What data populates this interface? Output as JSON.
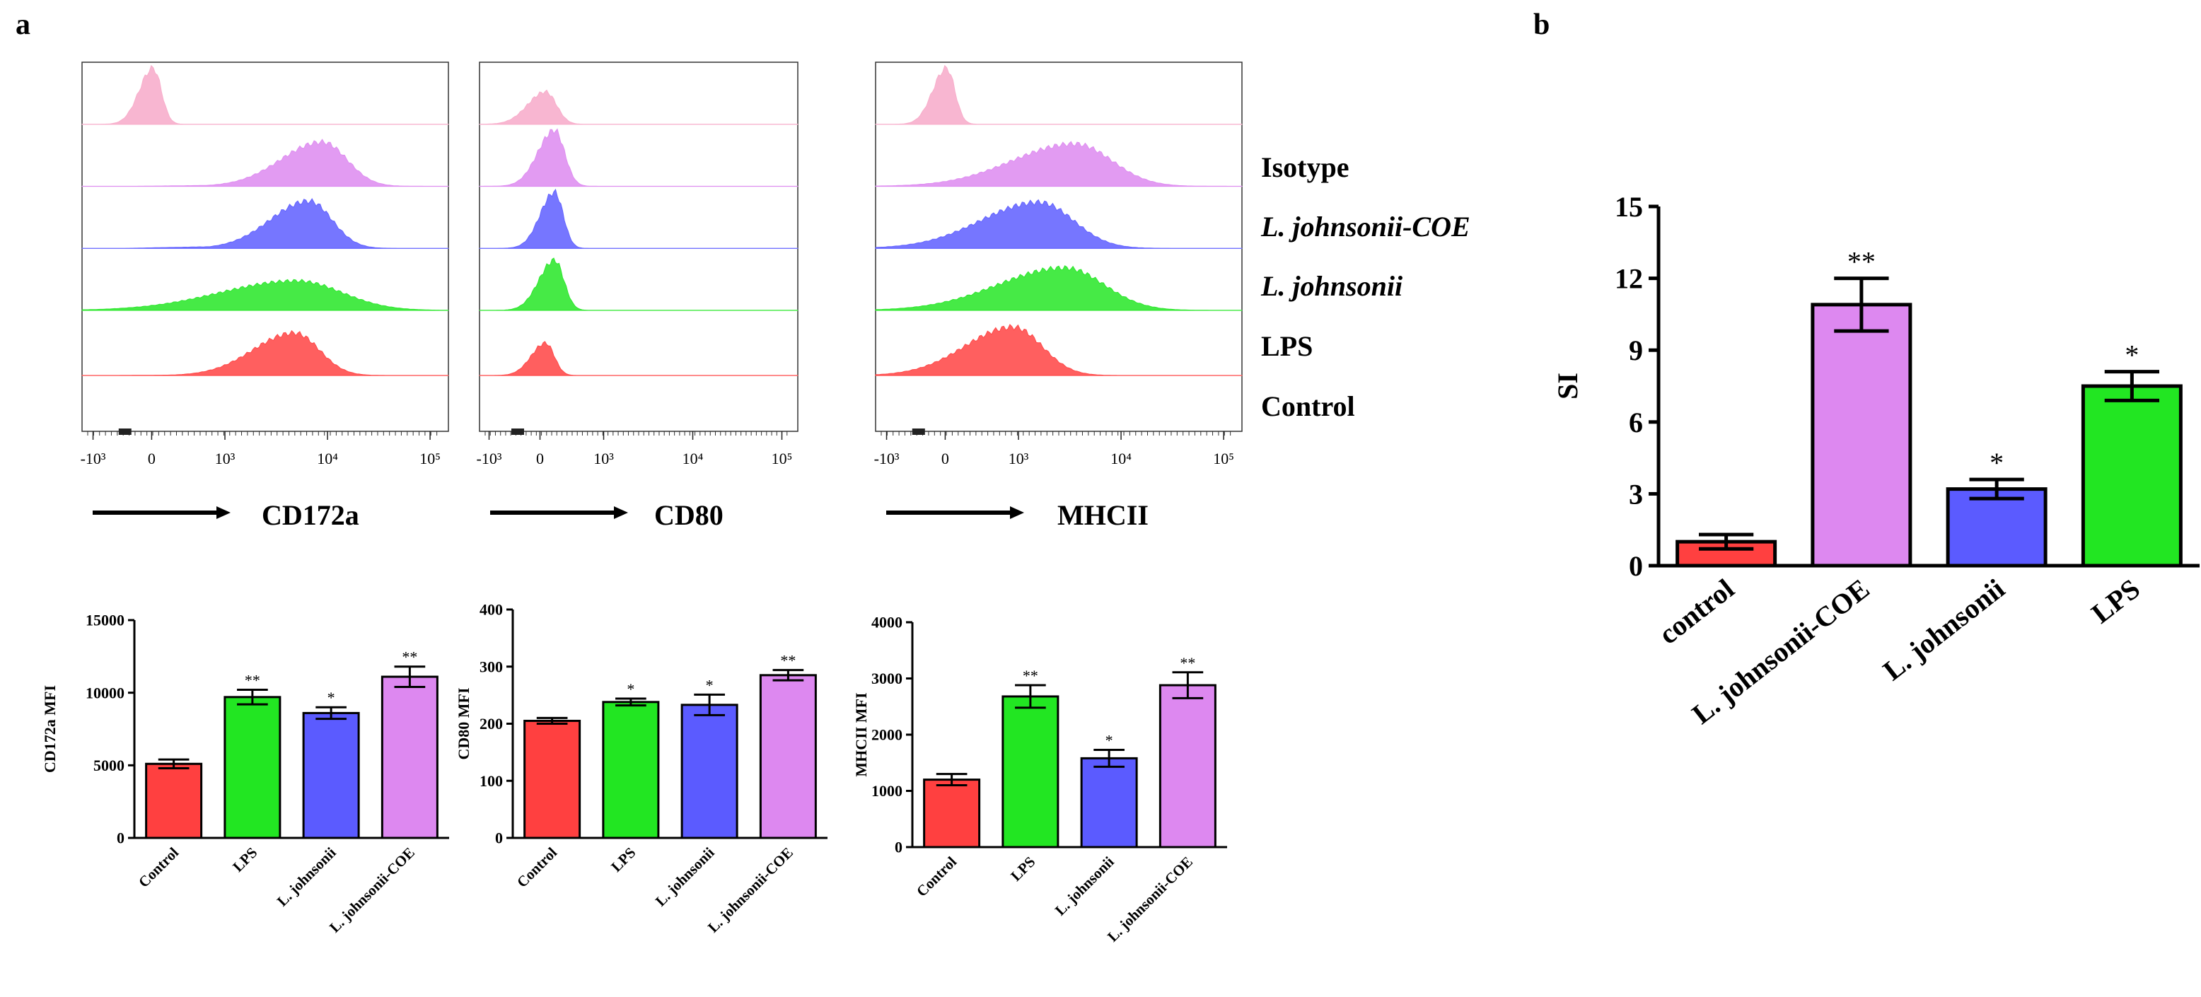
{
  "panel_labels": {
    "a": "a",
    "b": "b"
  },
  "colors": {
    "control": "#ff4040",
    "lps": "#22e622",
    "johnsonii": "#5b5bff",
    "coe": "#dd88f0",
    "isotype": "#f7a9c8"
  },
  "histogram_legend": [
    "Isotype",
    "L. johnsonii-COE",
    "L. johnsonii",
    "LPS",
    "Control"
  ],
  "histograms": [
    {
      "marker": "CD172a",
      "x_ticks": [
        "-10³",
        "0",
        "10³",
        "10⁴",
        "10⁵"
      ],
      "traces": [
        {
          "name": "Isotype",
          "peak_log": 2.3,
          "width": 0.1,
          "height": 0.95,
          "left_tail": 0
        },
        {
          "name": "L. johnsonii-COE",
          "peak_log": 3.95,
          "width": 0.3,
          "height": 0.75,
          "left_tail": 0.04
        },
        {
          "name": "L. johnsonii",
          "peak_log": 3.82,
          "width": 0.28,
          "height": 0.8,
          "left_tail": 0.06
        },
        {
          "name": "LPS",
          "peak_log": 3.7,
          "width": 0.55,
          "height": 0.5,
          "left_tail": 0.12
        },
        {
          "name": "Control",
          "peak_log": 3.68,
          "width": 0.3,
          "height": 0.72,
          "left_tail": 0.02
        }
      ]
    },
    {
      "marker": "CD80",
      "x_ticks": [
        "-10³",
        "0",
        "10³",
        "10⁴",
        "10⁵"
      ],
      "traces": [
        {
          "name": "Isotype",
          "peak_log": 2.35,
          "width": 0.15,
          "height": 0.55,
          "left_tail": 0
        },
        {
          "name": "L. johnsonii-COE",
          "peak_log": 2.45,
          "width": 0.14,
          "height": 0.95,
          "left_tail": 0
        },
        {
          "name": "L. johnsonii",
          "peak_log": 2.45,
          "width": 0.12,
          "height": 0.95,
          "left_tail": 0
        },
        {
          "name": "LPS",
          "peak_log": 2.45,
          "width": 0.13,
          "height": 0.85,
          "left_tail": 0
        },
        {
          "name": "Control",
          "peak_log": 2.35,
          "width": 0.12,
          "height": 0.55,
          "left_tail": 0
        }
      ]
    },
    {
      "marker": "MHCII",
      "x_ticks": [
        "-10³",
        "0",
        "10³",
        "10⁴",
        "10⁵"
      ],
      "traces": [
        {
          "name": "Isotype",
          "peak_log": 2.3,
          "width": 0.1,
          "height": 0.95,
          "left_tail": 0
        },
        {
          "name": "L. johnsonii-COE",
          "peak_log": 3.55,
          "width": 0.45,
          "height": 0.72,
          "left_tail": 0.12
        },
        {
          "name": "L. johnsonii",
          "peak_log": 3.2,
          "width": 0.42,
          "height": 0.78,
          "left_tail": 0.08
        },
        {
          "name": "LPS",
          "peak_log": 3.45,
          "width": 0.48,
          "height": 0.72,
          "left_tail": 0.15
        },
        {
          "name": "Control",
          "peak_log": 2.95,
          "width": 0.35,
          "height": 0.82,
          "left_tail": 0.04
        }
      ]
    }
  ],
  "chart_data": [
    {
      "type": "bar",
      "title": "",
      "xlabel": "",
      "ylabel": "CD172a MFI",
      "categories": [
        "Control",
        "LPS",
        "L. johnsonii",
        "L. johnsonii-COE"
      ],
      "values": [
        5100,
        9700,
        8600,
        11100
      ],
      "errors": [
        300,
        500,
        400,
        700
      ],
      "significance": [
        "",
        "**",
        "*",
        "**"
      ],
      "ylim": [
        0,
        15000
      ],
      "yticks": [
        0,
        5000,
        10000,
        15000
      ],
      "grid": false
    },
    {
      "type": "bar",
      "title": "",
      "xlabel": "",
      "ylabel": "CD80 MFI",
      "categories": [
        "Control",
        "LPS",
        "L. johnsonii",
        "L. johnsonii-COE"
      ],
      "values": [
        205,
        238,
        233,
        285
      ],
      "errors": [
        5,
        6,
        18,
        9
      ],
      "significance": [
        "",
        "*",
        "*",
        "**"
      ],
      "ylim": [
        0,
        400
      ],
      "yticks": [
        0,
        100,
        200,
        300,
        400
      ],
      "grid": false
    },
    {
      "type": "bar",
      "title": "",
      "xlabel": "",
      "ylabel": "MHCII MFI",
      "categories": [
        "Control",
        "LPS",
        "L. johnsonii",
        "L. johnsonii-COE"
      ],
      "values": [
        1200,
        2680,
        1580,
        2880
      ],
      "errors": [
        100,
        200,
        150,
        230
      ],
      "significance": [
        "",
        "**",
        "*",
        "**"
      ],
      "ylim": [
        0,
        4000
      ],
      "yticks": [
        0,
        1000,
        2000,
        3000,
        4000
      ],
      "grid": false
    },
    {
      "type": "bar",
      "title": "",
      "xlabel": "",
      "ylabel": "SI",
      "categories": [
        "control",
        "L. johnsonii-COE",
        "L. johnsonii",
        "LPS"
      ],
      "values": [
        1.0,
        10.9,
        3.2,
        7.5
      ],
      "errors": [
        0.3,
        1.1,
        0.4,
        0.6
      ],
      "significance": [
        "",
        "**",
        "*",
        "*"
      ],
      "ylim": [
        0,
        15
      ],
      "yticks": [
        0,
        3,
        6,
        9,
        12,
        15
      ],
      "grid": false
    }
  ]
}
